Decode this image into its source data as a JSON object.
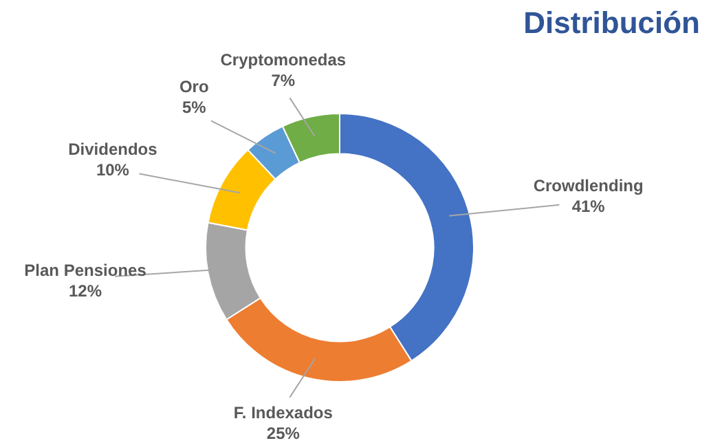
{
  "chart_data": {
    "type": "donut",
    "title": "Distribución",
    "categories": [
      "Crowdlending",
      "F. Indexados",
      "Plan Pensiones",
      "Dividendos",
      "Oro",
      "Cryptomonedas"
    ],
    "values": [
      41,
      25,
      12,
      10,
      5,
      7
    ],
    "colors": [
      "#4472c4",
      "#ed7d31",
      "#a5a5a5",
      "#ffc000",
      "#5b9bd5",
      "#70ad47"
    ],
    "value_labels": [
      "41%",
      "25%",
      "12%",
      "10%",
      "5%",
      "7%"
    ],
    "legend": false
  }
}
